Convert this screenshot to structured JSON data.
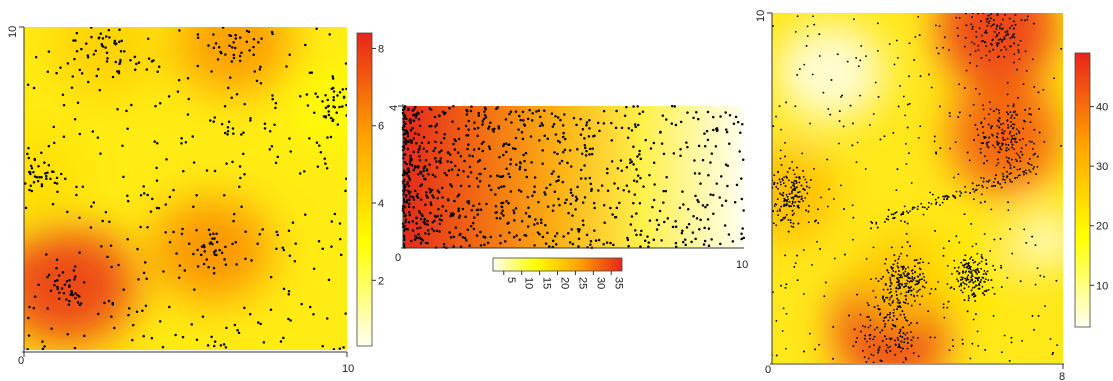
{
  "chart_data": [
    {
      "type": "heatmap",
      "title": "",
      "xlabel": "",
      "ylabel": "",
      "xlim": [
        0,
        10
      ],
      "ylim": [
        0,
        10
      ],
      "x_tick_labels": [
        "0",
        "10"
      ],
      "y_tick_labels": [
        "10"
      ],
      "colorbar": {
        "orientation": "vertical",
        "range": [
          0.3,
          8.4
        ],
        "tick_labels": [
          "2",
          "4",
          "6",
          "8"
        ]
      },
      "colormap": [
        "#fffff0",
        "#ffff00",
        "#ffa500",
        "#e8251b"
      ],
      "points_color": "#000000",
      "intensity_hotspots": [
        {
          "x": 1.3,
          "y": 2.0,
          "value": 8.0
        },
        {
          "x": 6.5,
          "y": 9.5,
          "value": 6.0
        },
        {
          "x": 5.8,
          "y": 3.1,
          "value": 6.2
        },
        {
          "x": 2.5,
          "y": 9.3,
          "value": 4.5
        },
        {
          "x": 0.3,
          "y": 5.5,
          "value": 4.0
        },
        {
          "x": 9.7,
          "y": 7.5,
          "value": 3.0
        }
      ]
    },
    {
      "type": "heatmap",
      "title": "",
      "xlabel": "",
      "ylabel": "",
      "xlim": [
        0,
        10
      ],
      "ylim": [
        0,
        4
      ],
      "x_tick_labels": [
        "0",
        "10"
      ],
      "y_tick_labels": [
        "4"
      ],
      "colorbar": {
        "orientation": "horizontal",
        "range": [
          2,
          38
        ],
        "tick_labels": [
          "5",
          "10",
          "15",
          "20",
          "25",
          "30",
          "35"
        ]
      },
      "colormap": [
        "#fffff0",
        "#ffff00",
        "#ffa500",
        "#e8251b"
      ],
      "points_color": "#000000",
      "intensity_gradient": "decreasing from x=0 (about 35) to x=10 (about 2)"
    },
    {
      "type": "heatmap",
      "title": "",
      "xlabel": "",
      "ylabel": "",
      "xlim": [
        0,
        8
      ],
      "ylim": [
        0,
        10
      ],
      "x_tick_labels": [
        "0",
        "8"
      ],
      "y_tick_labels": [
        "10"
      ],
      "colorbar": {
        "orientation": "vertical",
        "range": [
          3,
          49
        ],
        "tick_labels": [
          "10",
          "20",
          "30",
          "40"
        ]
      },
      "colormap": [
        "#fffff0",
        "#ffff00",
        "#ffa500",
        "#e8251b"
      ],
      "points_color": "#000000",
      "intensity_hotspots": [
        {
          "x": 3.3,
          "y": 1.0,
          "value": 45
        },
        {
          "x": 6.2,
          "y": 9.6,
          "value": 46
        },
        {
          "x": 6.4,
          "y": 6.5,
          "value": 42
        },
        {
          "x": 0.5,
          "y": 4.8,
          "value": 30
        },
        {
          "x": 3.6,
          "y": 2.4,
          "value": 28
        },
        {
          "x": 5.5,
          "y": 2.5,
          "value": 22
        }
      ]
    }
  ]
}
